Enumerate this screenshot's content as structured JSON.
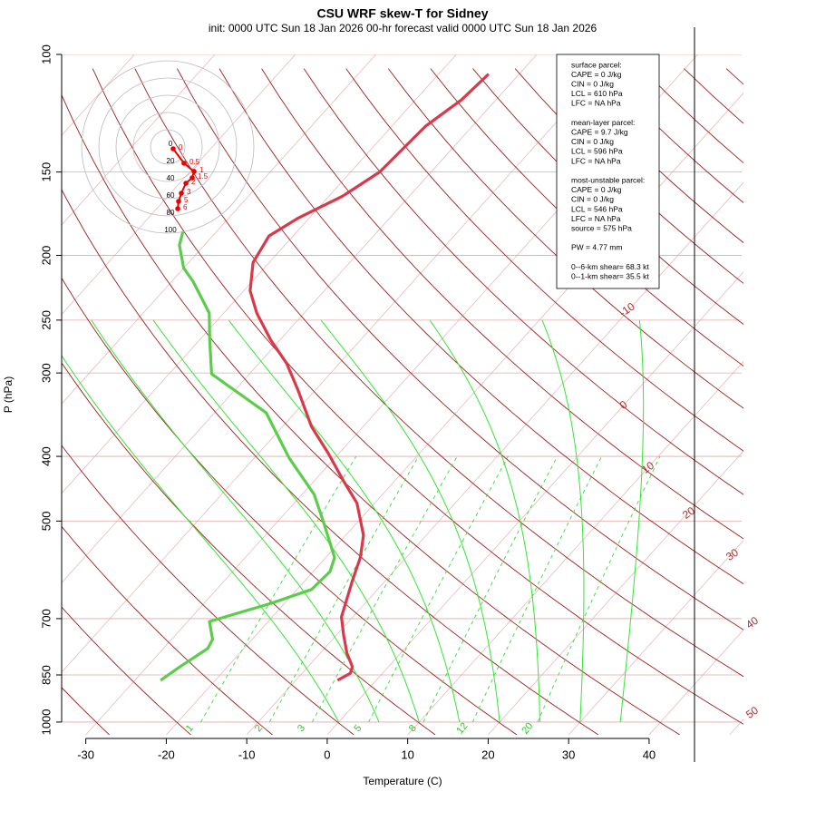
{
  "chart_data": {
    "type": "skewt",
    "title": "CSU WRF skew-T for Sidney",
    "subtitle": "init: 0000 UTC Sun 18 Jan 2026    00-hr forecast valid 0000 UTC Sun 18 Jan 2026",
    "xlabel": "Temperature (C)",
    "ylabel": "P (hPa)",
    "xlim": [
      -33,
      51.5
    ],
    "xticks": [
      -30,
      -20,
      -10,
      0,
      10,
      20,
      30,
      40
    ],
    "ylim": [
      1045,
      100
    ],
    "yticks": [
      100,
      150,
      200,
      250,
      300,
      400,
      500,
      700,
      850,
      1000
    ],
    "log_y": true,
    "series": [
      {
        "name": "temperature",
        "color": "#d9394a",
        "pressure": [
          866,
          845,
          826,
          788,
          741,
          696,
          614,
          567,
          525,
          470,
          435,
          396,
          361,
          318,
          290,
          268,
          244,
          226,
          205,
          187,
          176,
          163,
          150,
          128,
          117,
          107
        ],
        "values": [
          -4.8,
          -4.0,
          -4.5,
          -6.7,
          -9.1,
          -11.4,
          -14.1,
          -15.7,
          -17.8,
          -22.2,
          -26.4,
          -31.3,
          -36.4,
          -42.2,
          -46.6,
          -51.1,
          -55.9,
          -59.2,
          -62.0,
          -63.0,
          -61.4,
          -58.3,
          -56.4,
          -55.8,
          -54.3,
          -53.8
        ]
      },
      {
        "name": "dewpoint",
        "color": "#5ccc4b",
        "pressure": [
          866,
          826,
          776,
          752,
          707,
          664,
          633,
          595,
          567,
          509,
          456,
          402,
          344,
          301,
          268,
          244,
          219,
          209,
          193,
          184
        ],
        "values": [
          -26.8,
          -25.9,
          -24.5,
          -24.9,
          -27.3,
          -21.7,
          -18.2,
          -17.9,
          -18.9,
          -23.6,
          -28.5,
          -35.7,
          -43.6,
          -54.7,
          -58.7,
          -61.8,
          -67.3,
          -70.0,
          -73.1,
          -74.2
        ]
      }
    ],
    "adiabat_labels": [
      -10,
      0,
      10,
      20,
      30,
      40,
      50
    ],
    "mixing_ratio_labels": [
      1,
      2,
      3,
      5,
      8,
      12,
      20
    ],
    "hodograph": {
      "rings": [
        0,
        20,
        40,
        60,
        80,
        100
      ],
      "u": [
        6.3,
        18.9,
        30.5,
        28.4,
        21.1,
        15.8,
        12.6,
        11.6
      ],
      "v": [
        -2.1,
        -18.9,
        -28.4,
        -35.8,
        -42.1,
        -53.7,
        -63.2,
        -71.6
      ],
      "labels": [
        "0",
        "0.5",
        "1",
        "1.5",
        "2",
        "3",
        "5",
        "6"
      ]
    },
    "info_box": [
      [
        "surface parcel:",
        "CAPE = 0 J/kg",
        "CIN = 0 J/kg",
        "LCL = 610 hPa",
        "LFC = NA hPa"
      ],
      [
        "mean-layer parcel:",
        "CAPE = 9.7 J/kg",
        "CIN = 0 J/kg",
        "LCL = 596 hPa",
        "LFC = NA hPa"
      ],
      [
        "most-unstable parcel:",
        "CAPE = 0 J/kg",
        "CIN = 0 J/kg",
        "LCL = 546 hPa",
        "LFC = NA hPa",
        "source = 575 hPa"
      ],
      [
        "PW =  4.77 mm"
      ],
      [
        "0--6-km shear= 68.3 kt",
        "0--1-km shear= 35.5 kt"
      ]
    ]
  }
}
